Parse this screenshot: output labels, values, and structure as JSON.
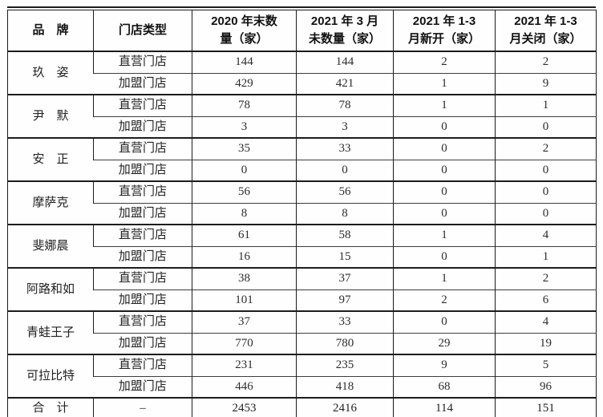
{
  "colors": {
    "background": "#fefefe",
    "border": "#1c1c1c",
    "text": "#2d2d2d"
  },
  "table": {
    "headers": [
      "品　牌",
      "门店类型",
      "2020 年末数\n量（家）",
      "2021 年 3 月\n未数量（家）",
      "2021 年 1-3\n月新开（家）",
      "2021 年 1-3\n月关闭（家）"
    ],
    "groups": [
      {
        "brand": "玖　姿",
        "rows": [
          [
            "直营门店",
            "144",
            "144",
            "2",
            "2"
          ],
          [
            "加盟门店",
            "429",
            "421",
            "1",
            "9"
          ]
        ]
      },
      {
        "brand": "尹　默",
        "rows": [
          [
            "直营门店",
            "78",
            "78",
            "1",
            "1"
          ],
          [
            "加盟门店",
            "3",
            "3",
            "0",
            "0"
          ]
        ]
      },
      {
        "brand": "安　正",
        "rows": [
          [
            "直营门店",
            "35",
            "33",
            "0",
            "2"
          ],
          [
            "加盟门店",
            "0",
            "0",
            "0",
            "0"
          ]
        ]
      },
      {
        "brand": "摩萨克",
        "rows": [
          [
            "直营门店",
            "56",
            "56",
            "0",
            "0"
          ],
          [
            "加盟门店",
            "8",
            "8",
            "0",
            "0"
          ]
        ]
      },
      {
        "brand": "斐娜晨",
        "rows": [
          [
            "直营门店",
            "61",
            "58",
            "1",
            "4"
          ],
          [
            "加盟门店",
            "16",
            "15",
            "0",
            "1"
          ]
        ]
      },
      {
        "brand": "阿路和如",
        "rows": [
          [
            "直营门店",
            "38",
            "37",
            "1",
            "2"
          ],
          [
            "加盟门店",
            "101",
            "97",
            "2",
            "6"
          ]
        ]
      },
      {
        "brand": "青蛙王子",
        "rows": [
          [
            "直营门店",
            "37",
            "33",
            "0",
            "4"
          ],
          [
            "加盟门店",
            "770",
            "780",
            "29",
            "19"
          ]
        ]
      },
      {
        "brand": "可拉比特",
        "rows": [
          [
            "直营门店",
            "231",
            "235",
            "9",
            "5"
          ],
          [
            "加盟门店",
            "446",
            "418",
            "68",
            "96"
          ]
        ]
      }
    ],
    "total": {
      "label": "合　计",
      "type": "–",
      "values": [
        "2453",
        "2416",
        "114",
        "151"
      ]
    }
  }
}
